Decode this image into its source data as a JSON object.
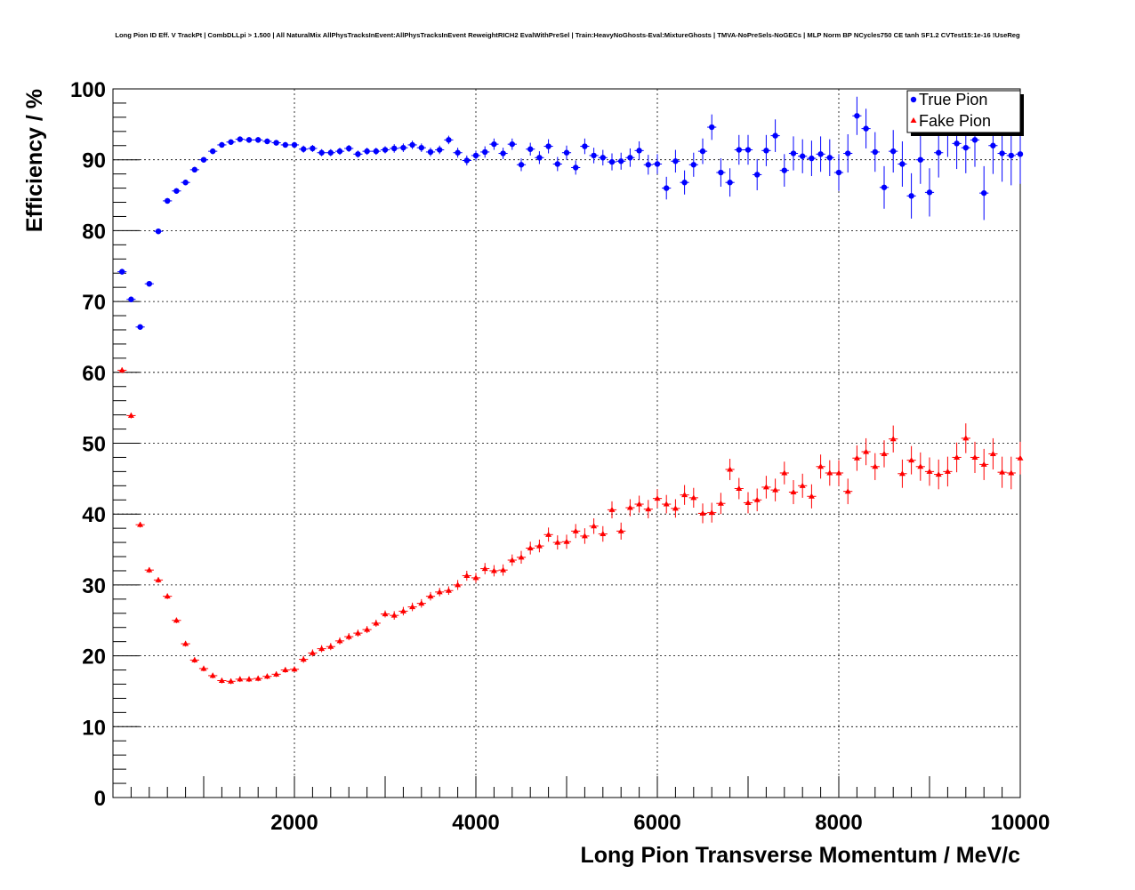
{
  "chart_data": {
    "type": "scatter",
    "title": "Long Pion ID Eff. V TrackPt | CombDLLpi > 1.500 | All NaturalMix AllPhysTracksInEvent:AllPhysTracksInEvent ReweightRICH2 EvalWithPreSel | Train:HeavyNoGhosts-Eval:MixtureGhosts | TMVA-NoPreSels-NoGECs | MLP Norm BP NCycles750 CE tanh SF1.2 CVTest15:1e-16 !UseReg",
    "xlabel": "Long Pion Transverse Momentum / MeV/c",
    "ylabel": "Efficiency / %",
    "xlim": [
      0,
      10000
    ],
    "ylim": [
      0,
      100
    ],
    "x_ticks": [
      2000,
      4000,
      6000,
      8000,
      10000
    ],
    "y_ticks": [
      0,
      10,
      20,
      30,
      40,
      50,
      60,
      70,
      80,
      90,
      100
    ],
    "grid": true,
    "legend_position": "top-right",
    "series": [
      {
        "name": "True Pion",
        "color": "#0000ff",
        "marker": "circle",
        "x": [
          100,
          200,
          300,
          400,
          500,
          600,
          700,
          800,
          900,
          1000,
          1100,
          1200,
          1300,
          1400,
          1500,
          1600,
          1700,
          1800,
          1900,
          2000,
          2100,
          2200,
          2300,
          2400,
          2500,
          2600,
          2700,
          2800,
          2900,
          3000,
          3100,
          3200,
          3300,
          3400,
          3500,
          3600,
          3700,
          3800,
          3900,
          4000,
          4100,
          4200,
          4300,
          4400,
          4500,
          4600,
          4700,
          4800,
          4900,
          5000,
          5100,
          5200,
          5300,
          5400,
          5500,
          5600,
          5700,
          5800,
          5900,
          6000,
          6100,
          6200,
          6300,
          6400,
          6500,
          6600,
          6700,
          6800,
          6900,
          7000,
          7100,
          7200,
          7300,
          7400,
          7500,
          7600,
          7700,
          7800,
          7900,
          8000,
          8100,
          8200,
          8300,
          8400,
          8500,
          8600,
          8700,
          8800,
          8900,
          9000,
          9100,
          9200,
          9300,
          9400,
          9500,
          9600,
          9700,
          9800,
          9900,
          10000
        ],
        "y": [
          74.2,
          70.3,
          66.4,
          72.5,
          79.9,
          84.2,
          85.6,
          86.8,
          88.6,
          90.0,
          91.2,
          92.1,
          92.5,
          92.9,
          92.8,
          92.8,
          92.6,
          92.4,
          92.1,
          92.1,
          91.5,
          91.6,
          91.0,
          91.0,
          91.2,
          91.6,
          90.8,
          91.2,
          91.2,
          91.4,
          91.6,
          91.7,
          92.1,
          91.7,
          91.1,
          91.4,
          92.8,
          91.0,
          89.9,
          90.6,
          91.1,
          92.2,
          90.9,
          92.2,
          89.3,
          91.5,
          90.3,
          91.9,
          89.4,
          91.0,
          88.9,
          91.9,
          90.6,
          90.3,
          89.7,
          89.8,
          90.3,
          91.3,
          89.3,
          89.4,
          86.0,
          89.8,
          86.8,
          89.3,
          91.2,
          94.6,
          88.2,
          86.8,
          91.4,
          91.4,
          87.9,
          91.3,
          93.4,
          88.5,
          90.9,
          90.5,
          90.2,
          90.8,
          90.3,
          88.2,
          90.9,
          96.2,
          94.4,
          91.1,
          86.1,
          91.2,
          89.4,
          84.9,
          90.0,
          85.4,
          91.0,
          93.9,
          92.3,
          91.7,
          92.8,
          85.3,
          92.0,
          90.9,
          90.6,
          90.8
        ],
        "err": [
          0.4,
          0.4,
          0.4,
          0.4,
          0.4,
          0.4,
          0.4,
          0.4,
          0.4,
          0.4,
          0.4,
          0.4,
          0.4,
          0.4,
          0.4,
          0.4,
          0.4,
          0.4,
          0.4,
          0.4,
          0.5,
          0.5,
          0.5,
          0.5,
          0.5,
          0.5,
          0.5,
          0.5,
          0.5,
          0.5,
          0.6,
          0.6,
          0.6,
          0.6,
          0.6,
          0.6,
          0.6,
          0.7,
          0.7,
          0.7,
          0.8,
          0.8,
          0.8,
          0.8,
          0.9,
          0.9,
          0.9,
          1.0,
          1.0,
          1.0,
          1.0,
          1.1,
          1.1,
          1.1,
          1.2,
          1.2,
          1.3,
          1.3,
          1.4,
          1.4,
          1.6,
          1.6,
          1.7,
          1.7,
          1.8,
          1.8,
          2.0,
          2.0,
          2.1,
          2.1,
          2.2,
          2.2,
          2.3,
          2.3,
          2.4,
          2.4,
          2.5,
          2.5,
          2.6,
          2.6,
          2.7,
          2.7,
          2.8,
          2.8,
          3.0,
          3.0,
          3.2,
          3.2,
          3.4,
          3.4,
          3.5,
          3.5,
          3.6,
          3.6,
          3.8,
          3.8,
          4.0,
          4.0,
          4.2,
          4.2
        ]
      },
      {
        "name": "Fake Pion",
        "color": "#ff0000",
        "marker": "triangle",
        "x": [
          100,
          200,
          300,
          400,
          500,
          600,
          700,
          800,
          900,
          1000,
          1100,
          1200,
          1300,
          1400,
          1500,
          1600,
          1700,
          1800,
          1900,
          2000,
          2100,
          2200,
          2300,
          2400,
          2500,
          2600,
          2700,
          2800,
          2900,
          3000,
          3100,
          3200,
          3300,
          3400,
          3500,
          3600,
          3700,
          3800,
          3900,
          4000,
          4100,
          4200,
          4300,
          4400,
          4500,
          4600,
          4700,
          4800,
          4900,
          5000,
          5100,
          5200,
          5300,
          5400,
          5500,
          5600,
          5700,
          5800,
          5900,
          6000,
          6100,
          6200,
          6300,
          6400,
          6500,
          6600,
          6700,
          6800,
          6900,
          7000,
          7100,
          7200,
          7300,
          7400,
          7500,
          7600,
          7700,
          7800,
          7900,
          8000,
          8100,
          8200,
          8300,
          8400,
          8500,
          8600,
          8700,
          8800,
          8900,
          9000,
          9100,
          9200,
          9300,
          9400,
          9500,
          9600,
          9700,
          9800,
          9900,
          10000
        ],
        "y": [
          60.3,
          53.9,
          38.5,
          32.1,
          30.7,
          28.4,
          25.0,
          21.7,
          19.4,
          18.2,
          17.2,
          16.5,
          16.4,
          16.7,
          16.7,
          16.8,
          17.1,
          17.4,
          18.0,
          18.1,
          19.5,
          20.4,
          21.0,
          21.3,
          22.1,
          22.7,
          23.2,
          23.7,
          24.6,
          25.9,
          25.7,
          26.3,
          26.9,
          27.4,
          28.4,
          29.0,
          29.2,
          30.0,
          31.3,
          31.0,
          32.3,
          32.0,
          32.1,
          33.5,
          33.9,
          35.2,
          35.5,
          37.1,
          36.0,
          36.1,
          37.6,
          36.9,
          38.3,
          37.2,
          40.6,
          37.6,
          40.9,
          41.4,
          40.7,
          42.2,
          41.4,
          40.8,
          42.7,
          42.3,
          40.1,
          40.2,
          41.5,
          46.3,
          43.6,
          41.6,
          42.0,
          43.8,
          43.4,
          45.8,
          43.1,
          44.0,
          42.5,
          46.7,
          45.8,
          45.8,
          43.2,
          47.9,
          48.8,
          46.7,
          48.5,
          50.6,
          45.7,
          47.6,
          46.7,
          46.0,
          45.6,
          46.0,
          48.0,
          50.7,
          48.0,
          47.0,
          48.5,
          45.9,
          45.8,
          47.9
        ],
        "err": [
          0.4,
          0.4,
          0.4,
          0.4,
          0.4,
          0.4,
          0.4,
          0.4,
          0.4,
          0.4,
          0.4,
          0.4,
          0.4,
          0.4,
          0.4,
          0.4,
          0.4,
          0.4,
          0.4,
          0.4,
          0.5,
          0.5,
          0.5,
          0.5,
          0.5,
          0.5,
          0.5,
          0.5,
          0.5,
          0.5,
          0.6,
          0.6,
          0.6,
          0.6,
          0.6,
          0.6,
          0.6,
          0.7,
          0.7,
          0.7,
          0.8,
          0.8,
          0.8,
          0.8,
          0.9,
          0.9,
          0.9,
          1.0,
          1.0,
          1.0,
          1.0,
          1.1,
          1.1,
          1.1,
          1.2,
          1.2,
          1.2,
          1.2,
          1.3,
          1.3,
          1.3,
          1.3,
          1.4,
          1.4,
          1.4,
          1.4,
          1.5,
          1.5,
          1.5,
          1.5,
          1.6,
          1.6,
          1.6,
          1.6,
          1.7,
          1.7,
          1.7,
          1.7,
          1.8,
          1.8,
          1.8,
          1.8,
          1.9,
          1.9,
          1.9,
          1.9,
          2.0,
          2.0,
          2.0,
          2.0,
          2.1,
          2.1,
          2.1,
          2.1,
          2.2,
          2.2,
          2.2,
          2.2,
          2.3,
          2.3
        ]
      }
    ]
  }
}
